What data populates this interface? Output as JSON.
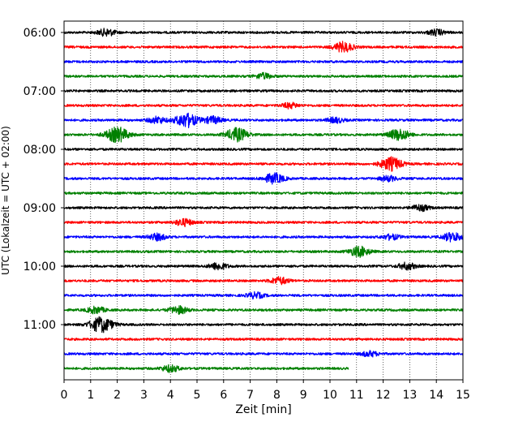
{
  "chart_data": {
    "type": "line",
    "xlabel": "Zeit  [min]",
    "ylabel": "UTC (Lokalzeit = UTC + 02:00)",
    "xlim": [
      0,
      15
    ],
    "x_ticks": [
      0,
      1,
      2,
      3,
      4,
      5,
      6,
      7,
      8,
      9,
      10,
      11,
      12,
      13,
      14,
      15
    ],
    "y_tick_labels": [
      "06:00",
      "07:00",
      "08:00",
      "09:00",
      "10:00",
      "11:00"
    ],
    "grid": "vertical-dotted",
    "trace_colors": [
      "#000000",
      "#ff0000",
      "#0000ff",
      "#008000"
    ],
    "traces": [
      {
        "start": "06:00",
        "end_min": 15,
        "color": "#000000",
        "events": [
          {
            "t": 1.6,
            "amp": 1.6
          },
          {
            "t": 14.0,
            "amp": 1.3
          }
        ]
      },
      {
        "start": "06:15",
        "end_min": 15,
        "color": "#ff0000",
        "events": [
          {
            "t": 10.5,
            "amp": 2.2
          }
        ]
      },
      {
        "start": "06:30",
        "end_min": 15,
        "color": "#0000ff",
        "events": []
      },
      {
        "start": "06:45",
        "end_min": 15,
        "color": "#008000",
        "events": [
          {
            "t": 7.5,
            "amp": 1.3
          }
        ]
      },
      {
        "start": "07:00",
        "end_min": 15,
        "color": "#000000",
        "events": []
      },
      {
        "start": "07:15",
        "end_min": 15,
        "color": "#ff0000",
        "events": [
          {
            "t": 8.5,
            "amp": 1.2
          }
        ]
      },
      {
        "start": "07:30",
        "end_min": 15,
        "color": "#0000ff",
        "events": [
          {
            "t": 4.6,
            "amp": 3.2
          },
          {
            "t": 3.5,
            "amp": 1.5
          },
          {
            "t": 5.6,
            "amp": 1.6
          },
          {
            "t": 10.2,
            "amp": 1.2
          }
        ]
      },
      {
        "start": "07:45",
        "end_min": 15,
        "color": "#008000",
        "events": [
          {
            "t": 2.0,
            "amp": 3.4
          },
          {
            "t": 6.5,
            "amp": 3.0
          },
          {
            "t": 12.6,
            "amp": 2.6
          }
        ]
      },
      {
        "start": "08:00",
        "end_min": 15,
        "color": "#000000",
        "events": []
      },
      {
        "start": "08:15",
        "end_min": 15,
        "color": "#ff0000",
        "events": [
          {
            "t": 12.3,
            "amp": 3.0
          }
        ]
      },
      {
        "start": "08:30",
        "end_min": 15,
        "color": "#0000ff",
        "events": [
          {
            "t": 7.9,
            "amp": 2.3
          },
          {
            "t": 12.2,
            "amp": 1.2
          }
        ]
      },
      {
        "start": "08:45",
        "end_min": 15,
        "color": "#008000",
        "events": []
      },
      {
        "start": "09:00",
        "end_min": 15,
        "color": "#000000",
        "events": [
          {
            "t": 13.4,
            "amp": 1.4
          }
        ]
      },
      {
        "start": "09:15",
        "end_min": 15,
        "color": "#ff0000",
        "events": [
          {
            "t": 4.5,
            "amp": 1.6
          }
        ]
      },
      {
        "start": "09:30",
        "end_min": 15,
        "color": "#0000ff",
        "events": [
          {
            "t": 3.5,
            "amp": 1.5
          },
          {
            "t": 14.6,
            "amp": 2.0
          },
          {
            "t": 12.3,
            "amp": 1.2
          }
        ]
      },
      {
        "start": "09:45",
        "end_min": 15,
        "color": "#008000",
        "events": [
          {
            "t": 11.1,
            "amp": 2.3
          }
        ]
      },
      {
        "start": "10:00",
        "end_min": 15,
        "color": "#000000",
        "events": [
          {
            "t": 5.8,
            "amp": 1.6
          },
          {
            "t": 12.9,
            "amp": 1.5
          }
        ]
      },
      {
        "start": "10:15",
        "end_min": 15,
        "color": "#ff0000",
        "events": [
          {
            "t": 8.1,
            "amp": 1.6
          }
        ]
      },
      {
        "start": "10:30",
        "end_min": 15,
        "color": "#0000ff",
        "events": [
          {
            "t": 7.2,
            "amp": 1.3
          }
        ]
      },
      {
        "start": "10:45",
        "end_min": 15,
        "color": "#008000",
        "events": [
          {
            "t": 1.2,
            "amp": 1.5
          },
          {
            "t": 4.3,
            "amp": 1.7
          }
        ]
      },
      {
        "start": "11:00",
        "end_min": 15,
        "color": "#000000",
        "events": [
          {
            "t": 1.4,
            "amp": 3.5
          }
        ]
      },
      {
        "start": "11:15",
        "end_min": 15,
        "color": "#ff0000",
        "events": []
      },
      {
        "start": "11:30",
        "end_min": 15,
        "color": "#0000ff",
        "events": [
          {
            "t": 11.5,
            "amp": 1.2
          }
        ]
      },
      {
        "start": "11:45",
        "end_min": 10.7,
        "color": "#008000",
        "events": [
          {
            "t": 4.0,
            "amp": 1.5
          }
        ]
      }
    ]
  }
}
